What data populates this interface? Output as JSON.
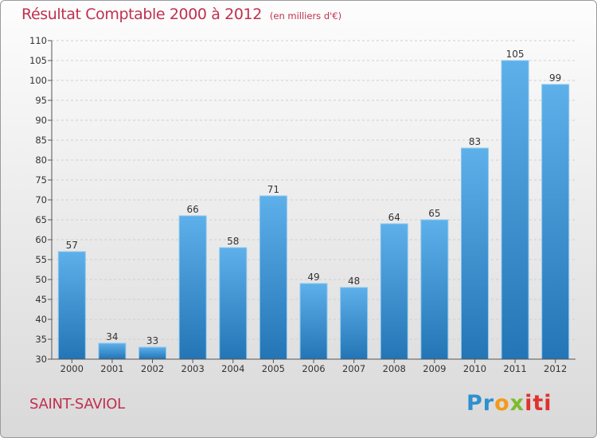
{
  "title": "Résultat Comptable 2000 à 2012",
  "subtitle": "(en milliers d'€)",
  "commune": "SAINT-SAVIOL",
  "logo": {
    "p1": "Pr",
    "p2": "o",
    "p3": "x",
    "p4": "iti"
  },
  "chart_data": {
    "type": "bar",
    "title": "Résultat Comptable 2000 à 2012",
    "subtitle": "(en milliers d'€)",
    "categories": [
      "2000",
      "2001",
      "2002",
      "2003",
      "2004",
      "2005",
      "2006",
      "2007",
      "2008",
      "2009",
      "2010",
      "2011",
      "2012"
    ],
    "values": [
      57,
      34,
      33,
      66,
      58,
      71,
      49,
      48,
      64,
      65,
      83,
      105,
      99
    ],
    "xlabel": "",
    "ylabel": "",
    "ylim": [
      30,
      110
    ],
    "yticks": [
      30,
      35,
      40,
      45,
      50,
      55,
      60,
      65,
      70,
      75,
      80,
      85,
      90,
      95,
      100,
      105,
      110
    ],
    "grid": true,
    "colors": {
      "bar_top": "#5db0ea",
      "bar_bottom": "#2375b5",
      "grid": "#cfcfcf"
    }
  }
}
